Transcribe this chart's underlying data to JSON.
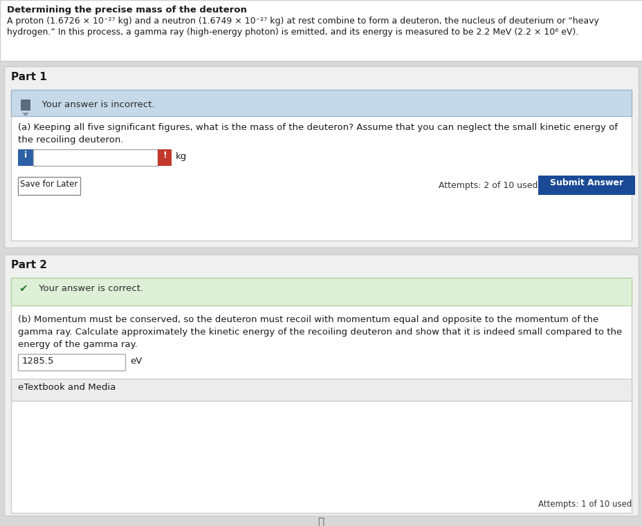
{
  "bg_color": "#d8d8d8",
  "header_bg": "#ffffff",
  "header_title": "Determining the precise mass of the deuteron",
  "header_body_line1": "A proton (1.6726 × 10⁻²⁷ kg) and a neutron (1.6749 × 10⁻²⁷ kg) at rest combine to form a deuteron, the nucleus of deuterium or “heavy",
  "header_body_line2": "hydrogen.” In this process, a gamma ray (high-energy photon) is emitted, and its energy is measured to be 2.2 MeV (2.2 × 10⁶ eV).",
  "part1_label": "Part 1",
  "part1_incorrect_bg": "#c5d9e8",
  "part1_incorrect_border": "#a0b8cc",
  "part1_incorrect_text": "  Your answer is incorrect.",
  "part1_question_line1": "(a) Keeping all five significant figures, what is the mass of the deuteron? Assume that you can neglect the small kinetic energy of",
  "part1_question_line2": "the recoiling deuteron.",
  "part1_unit": "kg",
  "part1_blue_btn": "#2d5fa6",
  "part1_red_indicator": "#c0392b",
  "part1_save_btn_text": "Save for Later",
  "part1_attempts": "Attempts: 2 of 10 used",
  "part1_submit_btn": "Submit Answer",
  "part1_submit_bg": "#1a4a96",
  "part2_label": "Part 2",
  "part2_correct_bg": "#dff0d8",
  "part2_correct_border": "#b2d4a0",
  "part2_correct_text": " Your answer is correct.",
  "part2_q_line1": "(b) Momentum must be conserved, so the deuteron must recoil with momentum equal and opposite to the momentum of the",
  "part2_q_line2": "gamma ray. Calculate approximately the kinetic energy of the recoiling deuteron and show that it is indeed small compared to the",
  "part2_q_line3": "energy of the gamma ray.",
  "part2_answer": "1285.5",
  "part2_unit": "eV",
  "part2_etextbook": "eTextbook and Media",
  "part2_attempts": "Attempts: 1 of 10 used",
  "outer_bg": "#e0e0e0",
  "section_bg": "#f0f0f0",
  "white": "#ffffff",
  "light_gray_border": "#cccccc",
  "dark_gray_border": "#999999",
  "text_dark": "#1a1a1a",
  "text_medium": "#333333"
}
